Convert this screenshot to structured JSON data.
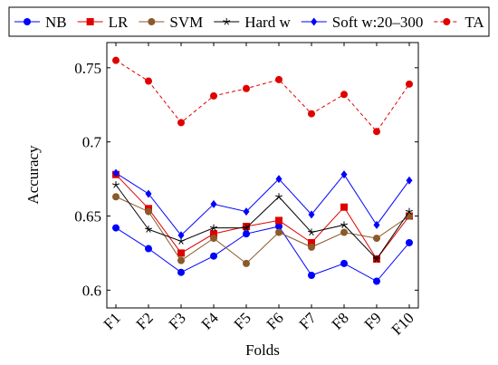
{
  "chart_data": {
    "type": "line",
    "x_label": "Folds",
    "y_label": "Accuracy",
    "categories": [
      "F1",
      "F2",
      "F3",
      "F4",
      "F5",
      "F6",
      "F7",
      "F8",
      "F9",
      "F10"
    ],
    "ylim": [
      0.588,
      0.767
    ],
    "yticks": [
      0.6,
      0.65,
      0.7,
      0.75
    ],
    "series": [
      {
        "name": "NB",
        "color": "#0000ff",
        "marker": "circle",
        "dashed": false,
        "values": [
          0.642,
          0.628,
          0.612,
          0.623,
          0.638,
          0.643,
          0.61,
          0.618,
          0.606,
          0.632
        ]
      },
      {
        "name": "LR",
        "color": "#e00000",
        "marker": "square",
        "dashed": false,
        "values": [
          0.678,
          0.655,
          0.625,
          0.638,
          0.643,
          0.647,
          0.632,
          0.656,
          0.621,
          0.65
        ]
      },
      {
        "name": "SVM",
        "color": "#8b5a2b",
        "marker": "circle",
        "dashed": false,
        "values": [
          0.663,
          0.653,
          0.62,
          0.635,
          0.618,
          0.639,
          0.629,
          0.639,
          0.635,
          0.65
        ]
      },
      {
        "name": "Hard w",
        "color": "#000000",
        "marker": "star",
        "dashed": false,
        "values": [
          0.671,
          0.641,
          0.633,
          0.642,
          0.642,
          0.663,
          0.639,
          0.644,
          0.621,
          0.653
        ]
      },
      {
        "name": "Soft w:20–300",
        "color": "#0000ff",
        "marker": "diamond",
        "dashed": false,
        "values": [
          0.679,
          0.665,
          0.637,
          0.658,
          0.653,
          0.675,
          0.651,
          0.678,
          0.644,
          0.674
        ]
      },
      {
        "name": "TA",
        "color": "#e00000",
        "marker": "circle",
        "dashed": true,
        "values": [
          0.755,
          0.741,
          0.713,
          0.731,
          0.736,
          0.742,
          0.719,
          0.732,
          0.707,
          0.739
        ]
      }
    ]
  }
}
